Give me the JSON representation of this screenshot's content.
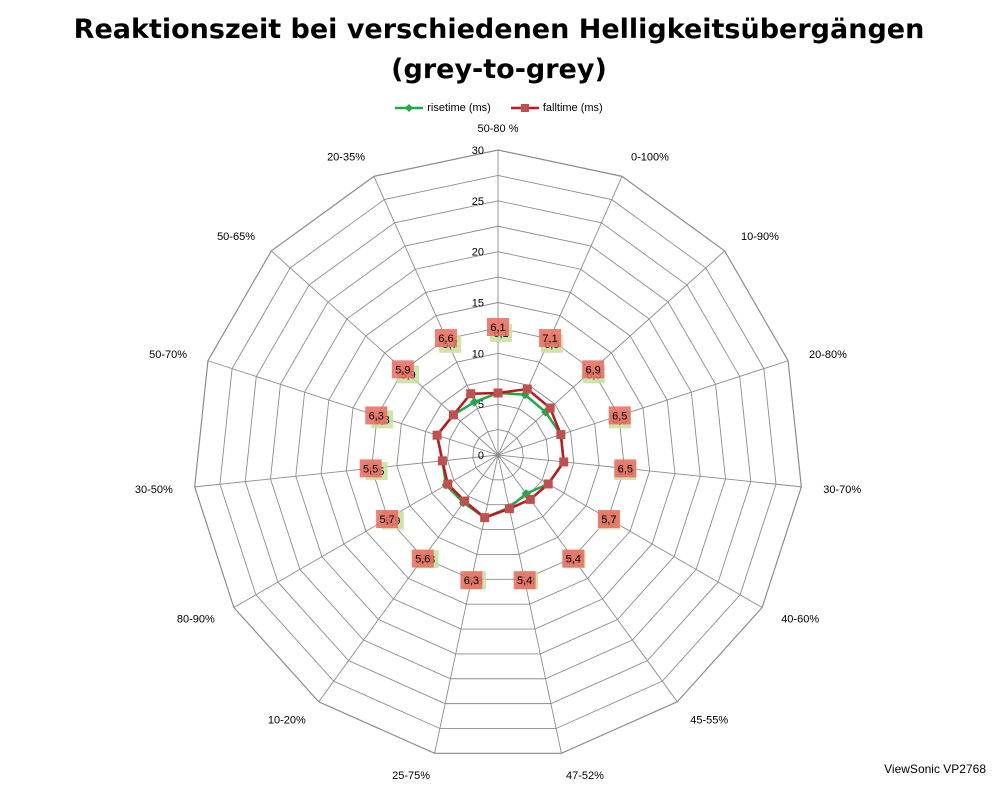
{
  "chart_data": {
    "type": "radar",
    "title_line1": "Reaktionszeit bei verschiedenen Helligkeitsübergängen",
    "title_line2": "(grey-to-grey)",
    "categories": [
      "50-80 %",
      "0-100%",
      "10-90%",
      "20-80%",
      "30-70%",
      "40-60%",
      "45-55%",
      "47-52%",
      "25-75%",
      "10-20%",
      "80-90%",
      "30-50%",
      "50-70%",
      "50-65%",
      "20-35%"
    ],
    "rlim": [
      0,
      30
    ],
    "ticks": [
      "0",
      "5",
      "10",
      "15",
      "20",
      "25",
      "30"
    ],
    "grid": true,
    "legend_position": "top",
    "series": [
      {
        "name": "risetime (ms)",
        "color": "#1faa4a",
        "label_bg": "#c5df9e",
        "values": [
          6.1,
          6.5,
          6.3,
          6.5,
          6.5,
          5.7,
          4.7,
          5.3,
          6.3,
          5.8,
          5.9,
          5.5,
          6.3,
          5.9,
          5.7
        ],
        "labels": [
          "6,1",
          "6,5",
          "6,3",
          "6,5",
          "6,5",
          "5,7",
          "4,7",
          "5,3",
          "6,3",
          "5,8",
          "5,9",
          "5,5",
          "6,3",
          "5,9",
          "5,7"
        ]
      },
      {
        "name": "falltime (ms)",
        "color": "#c0161c",
        "label_bg": "#e96a5e",
        "values": [
          6.1,
          7.1,
          6.9,
          6.5,
          6.5,
          5.7,
          5.4,
          5.4,
          6.3,
          5.6,
          5.7,
          5.5,
          6.3,
          5.9,
          6.6
        ],
        "labels": [
          "6,1",
          "7,1",
          "6,9",
          "6,5",
          "6,5",
          "5,7",
          "5,4",
          "5,4",
          "6,3",
          "5,6",
          "5,7",
          "5,5",
          "6,3",
          "5,9",
          "6,6"
        ]
      }
    ]
  },
  "watermark": "ViewSonic VP2768"
}
